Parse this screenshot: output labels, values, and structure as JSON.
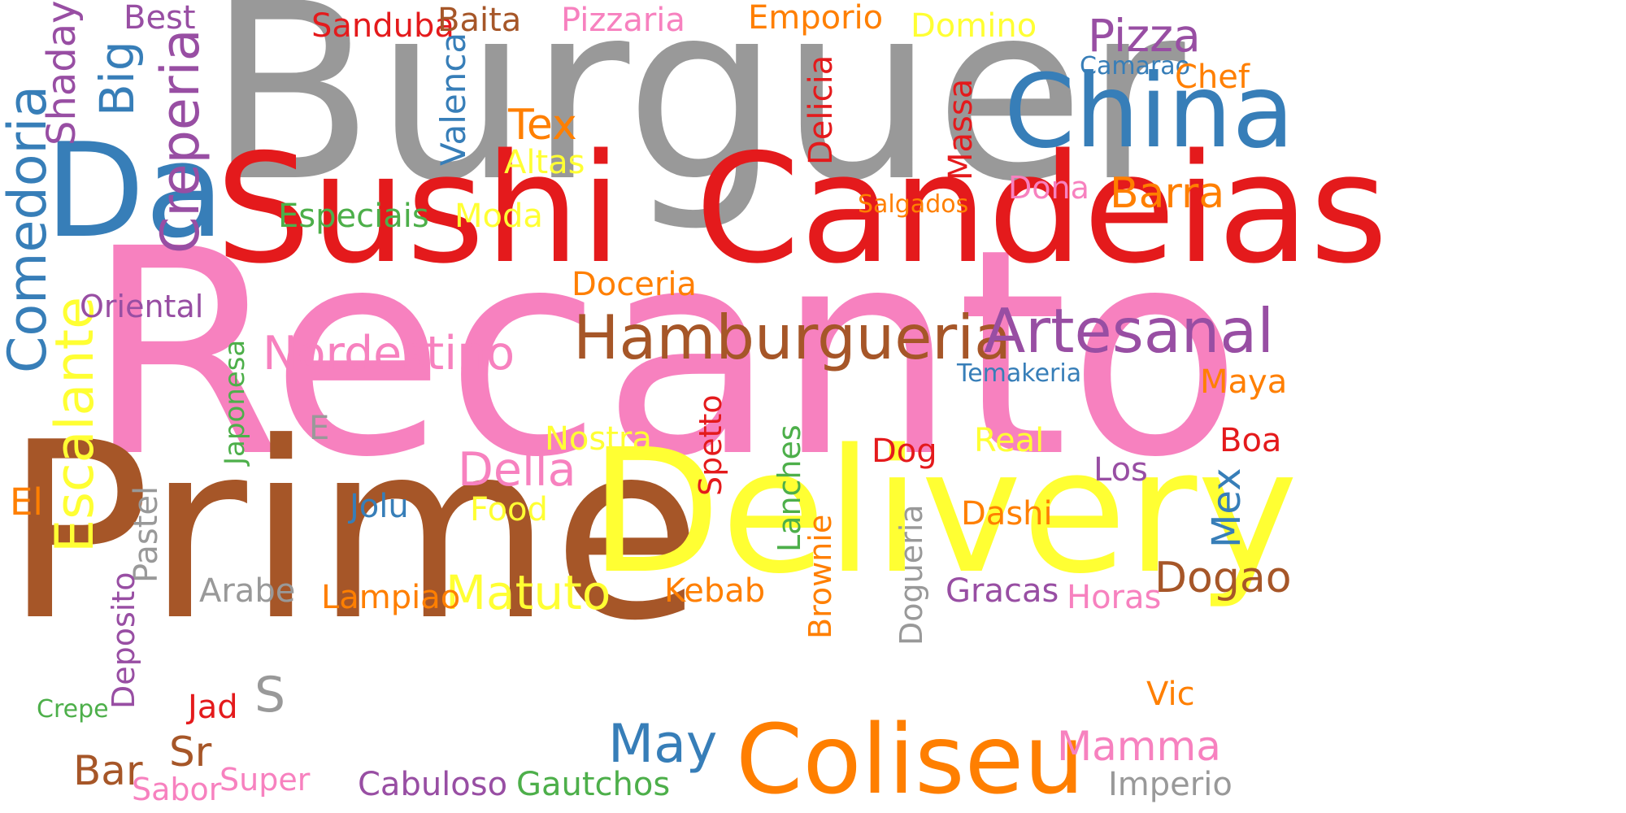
{
  "palette": {
    "gray": "#999999",
    "pink": "#f781bf",
    "red": "#e41a1c",
    "brown": "#a65628",
    "yellow": "#ffff33",
    "blue": "#377eb8",
    "purple": "#984ea3",
    "green": "#4daf4a",
    "orange": "#ff7f00"
  },
  "words": [
    {
      "text": "Burguer",
      "color": "gray"
    },
    {
      "text": "Recanto",
      "color": "pink"
    },
    {
      "text": "Prime",
      "color": "brown"
    },
    {
      "text": "Delivery",
      "color": "yellow"
    },
    {
      "text": "Sushi",
      "color": "red"
    },
    {
      "text": "Candeias",
      "color": "red"
    },
    {
      "text": "China",
      "color": "blue"
    },
    {
      "text": "Da",
      "color": "blue"
    },
    {
      "text": "Coliseu",
      "color": "orange"
    },
    {
      "text": "Hamburgueria",
      "color": "brown"
    },
    {
      "text": "Artesanal",
      "color": "purple"
    },
    {
      "text": "Comedoria",
      "color": "blue"
    },
    {
      "text": "Creperia",
      "color": "purple"
    },
    {
      "text": "Escalante",
      "color": "yellow"
    },
    {
      "text": "Matuto",
      "color": "yellow"
    },
    {
      "text": "May",
      "color": "blue"
    },
    {
      "text": "Nordestino",
      "color": "pink"
    },
    {
      "text": "Della",
      "color": "pink"
    },
    {
      "text": "Pizza",
      "color": "purple"
    },
    {
      "text": "Barra",
      "color": "orange"
    },
    {
      "text": "Mamma",
      "color": "pink"
    },
    {
      "text": "Dogao",
      "color": "brown"
    },
    {
      "text": "Big",
      "color": "blue"
    },
    {
      "text": "Shaday",
      "color": "purple"
    },
    {
      "text": "Tex",
      "color": "orange"
    },
    {
      "text": "Mex",
      "color": "blue"
    },
    {
      "text": "Sr",
      "color": "brown"
    },
    {
      "text": "Bar",
      "color": "brown"
    },
    {
      "text": "S",
      "color": "gray"
    },
    {
      "text": "Valenca",
      "color": "blue"
    },
    {
      "text": "Delicia",
      "color": "red"
    },
    {
      "text": "Massa",
      "color": "red"
    },
    {
      "text": "Doceria",
      "color": "orange"
    },
    {
      "text": "Oriental",
      "color": "purple"
    },
    {
      "text": "Especiais",
      "color": "green"
    },
    {
      "text": "Moda",
      "color": "yellow"
    },
    {
      "text": "Altas",
      "color": "yellow"
    },
    {
      "text": "Sanduba",
      "color": "red"
    },
    {
      "text": "Baita",
      "color": "brown"
    },
    {
      "text": "Pizzaria",
      "color": "pink"
    },
    {
      "text": "Emporio",
      "color": "orange"
    },
    {
      "text": "Domino",
      "color": "yellow"
    },
    {
      "text": "Best",
      "color": "purple"
    },
    {
      "text": "Camarao",
      "color": "blue"
    },
    {
      "text": "Chef",
      "color": "orange"
    },
    {
      "text": "Dona",
      "color": "pink"
    },
    {
      "text": "Salgados",
      "color": "orange"
    },
    {
      "text": "Temakeria",
      "color": "blue"
    },
    {
      "text": "Maya",
      "color": "orange"
    },
    {
      "text": "Boa",
      "color": "red"
    },
    {
      "text": "Los",
      "color": "purple"
    },
    {
      "text": "Real",
      "color": "yellow"
    },
    {
      "text": "Dashi",
      "color": "orange"
    },
    {
      "text": "Horas",
      "color": "pink"
    },
    {
      "text": "Gracas",
      "color": "purple"
    },
    {
      "text": "Vic",
      "color": "orange"
    },
    {
      "text": "Imperio",
      "color": "gray"
    },
    {
      "text": "Dog",
      "color": "red"
    },
    {
      "text": "Nostra",
      "color": "yellow"
    },
    {
      "text": "Food",
      "color": "yellow"
    },
    {
      "text": "Jolu",
      "color": "blue"
    },
    {
      "text": "E",
      "color": "gray"
    },
    {
      "text": "Japonesa",
      "color": "green"
    },
    {
      "text": "El",
      "color": "orange"
    },
    {
      "text": "Pastel",
      "color": "gray"
    },
    {
      "text": "Deposito",
      "color": "purple"
    },
    {
      "text": "Arabe",
      "color": "gray"
    },
    {
      "text": "Lampiao",
      "color": "orange"
    },
    {
      "text": "Kebab",
      "color": "orange"
    },
    {
      "text": "Spetto",
      "color": "red"
    },
    {
      "text": "Lanches",
      "color": "green"
    },
    {
      "text": "Brownie",
      "color": "orange"
    },
    {
      "text": "Dogueria",
      "color": "gray"
    },
    {
      "text": "Jad",
      "color": "red"
    },
    {
      "text": "Crepe",
      "color": "green"
    },
    {
      "text": "Sabor",
      "color": "pink"
    },
    {
      "text": "Super",
      "color": "pink"
    },
    {
      "text": "Cabuloso",
      "color": "purple"
    },
    {
      "text": "Gautchos",
      "color": "green"
    }
  ]
}
